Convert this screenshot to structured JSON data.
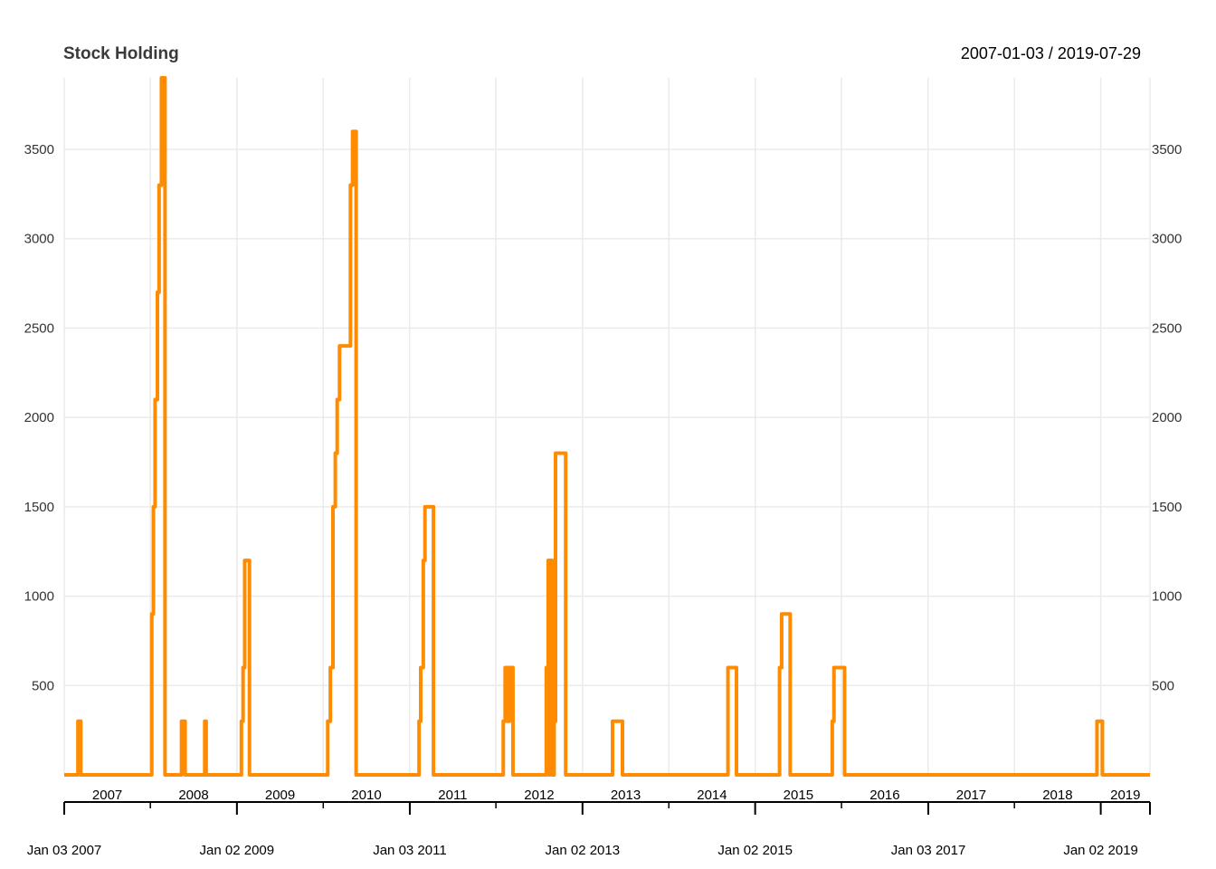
{
  "chart_data": {
    "type": "line",
    "title": "Stock Holding",
    "date_range": "2007-01-03 / 2019-07-29",
    "xlabel": "",
    "ylabel": "",
    "ylim": [
      0,
      3900
    ],
    "xlim": [
      "2007-01-03",
      "2019-07-29"
    ],
    "y_ticks": [
      500,
      1000,
      1500,
      2000,
      2500,
      3000,
      3500
    ],
    "year_labels": [
      "2007",
      "2008",
      "2009",
      "2010",
      "2011",
      "2012",
      "2013",
      "2014",
      "2015",
      "2016",
      "2017",
      "2018",
      "2019"
    ],
    "major_ticks": [
      {
        "date": "2007-01-03",
        "label": "Jan 03 2007"
      },
      {
        "date": "2009-01-02",
        "label": "Jan 02 2009"
      },
      {
        "date": "2011-01-03",
        "label": "Jan 03 2011"
      },
      {
        "date": "2013-01-02",
        "label": "Jan 02 2013"
      },
      {
        "date": "2015-01-02",
        "label": "Jan 02 2015"
      },
      {
        "date": "2017-01-03",
        "label": "Jan 03 2017"
      },
      {
        "date": "2019-01-02",
        "label": "Jan 02 2019"
      }
    ],
    "grid": true,
    "series": [
      {
        "color": "#ff8c00",
        "points": [
          [
            "2007-01-03",
            0
          ],
          [
            "2007-03-01",
            0
          ],
          [
            "2007-03-02",
            300
          ],
          [
            "2007-03-13",
            300
          ],
          [
            "2007-03-14",
            0
          ],
          [
            "2008-01-07",
            0
          ],
          [
            "2008-01-08",
            900
          ],
          [
            "2008-01-15",
            1500
          ],
          [
            "2008-01-22",
            2100
          ],
          [
            "2008-02-01",
            2700
          ],
          [
            "2008-02-08",
            3300
          ],
          [
            "2008-02-18",
            3900
          ],
          [
            "2008-03-03",
            3900
          ],
          [
            "2008-03-04",
            0
          ],
          [
            "2008-05-12",
            0
          ],
          [
            "2008-05-13",
            300
          ],
          [
            "2008-05-27",
            300
          ],
          [
            "2008-05-28",
            0
          ],
          [
            "2008-08-18",
            0
          ],
          [
            "2008-08-19",
            300
          ],
          [
            "2008-08-22",
            300
          ],
          [
            "2008-08-25",
            0
          ],
          [
            "2009-01-20",
            0
          ],
          [
            "2009-01-21",
            300
          ],
          [
            "2009-01-28",
            600
          ],
          [
            "2009-02-04",
            1200
          ],
          [
            "2009-02-23",
            1200
          ],
          [
            "2009-02-24",
            0
          ],
          [
            "2010-01-20",
            0
          ],
          [
            "2010-01-21",
            300
          ],
          [
            "2010-02-01",
            600
          ],
          [
            "2010-02-12",
            1500
          ],
          [
            "2010-02-22",
            1800
          ],
          [
            "2010-03-02",
            2100
          ],
          [
            "2010-03-12",
            2400
          ],
          [
            "2010-04-20",
            2400
          ],
          [
            "2010-04-27",
            3300
          ],
          [
            "2010-05-06",
            3600
          ],
          [
            "2010-05-20",
            3600
          ],
          [
            "2010-05-21",
            0
          ],
          [
            "2011-02-10",
            0
          ],
          [
            "2011-02-11",
            300
          ],
          [
            "2011-02-18",
            600
          ],
          [
            "2011-03-01",
            1200
          ],
          [
            "2011-03-08",
            1500
          ],
          [
            "2011-04-12",
            1500
          ],
          [
            "2011-04-13",
            0
          ],
          [
            "2012-02-01",
            0
          ],
          [
            "2012-02-02",
            300
          ],
          [
            "2012-02-10",
            600
          ],
          [
            "2012-02-20",
            600
          ],
          [
            "2012-02-21",
            300
          ],
          [
            "2012-02-28",
            600
          ],
          [
            "2012-03-13",
            600
          ],
          [
            "2012-03-14",
            0
          ],
          [
            "2012-08-01",
            0
          ],
          [
            "2012-08-02",
            600
          ],
          [
            "2012-08-10",
            1200
          ],
          [
            "2012-08-14",
            0
          ],
          [
            "2012-08-17",
            1200
          ],
          [
            "2012-08-24",
            1200
          ],
          [
            "2012-08-27",
            0
          ],
          [
            "2012-09-04",
            300
          ],
          [
            "2012-09-10",
            1800
          ],
          [
            "2012-10-22",
            1800
          ],
          [
            "2012-10-23",
            0
          ],
          [
            "2013-05-08",
            0
          ],
          [
            "2013-05-09",
            300
          ],
          [
            "2013-06-19",
            300
          ],
          [
            "2013-06-20",
            0
          ],
          [
            "2014-09-08",
            0
          ],
          [
            "2014-09-09",
            600
          ],
          [
            "2014-10-14",
            600
          ],
          [
            "2014-10-15",
            0
          ],
          [
            "2015-04-14",
            0
          ],
          [
            "2015-04-15",
            600
          ],
          [
            "2015-04-24",
            900
          ],
          [
            "2015-05-29",
            900
          ],
          [
            "2015-05-30",
            0
          ],
          [
            "2015-11-23",
            0
          ],
          [
            "2015-11-24",
            300
          ],
          [
            "2015-12-01",
            600
          ],
          [
            "2016-01-14",
            600
          ],
          [
            "2016-01-15",
            0
          ],
          [
            "2018-12-14",
            0
          ],
          [
            "2018-12-17",
            300
          ],
          [
            "2019-01-08",
            300
          ],
          [
            "2019-01-09",
            0
          ],
          [
            "2019-07-29",
            0
          ]
        ]
      }
    ]
  }
}
